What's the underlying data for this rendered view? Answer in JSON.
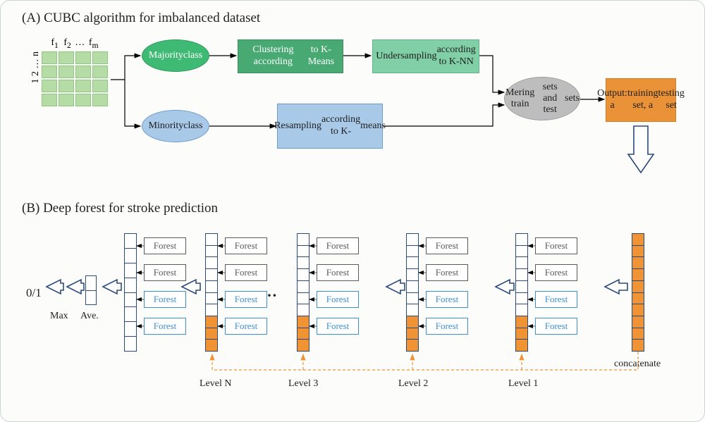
{
  "section_a_title": "(A) CUBC algorithm for imbalanced dataset",
  "section_b_title": "(B) Deep forest for stroke prediction",
  "grid": {
    "col_labels": [
      "f",
      "f",
      "…",
      "f"
    ],
    "col_subs": [
      "1",
      "2",
      "",
      "m"
    ],
    "row_labels_text": "1  2  …  n",
    "cell_fill": "#b5dca4",
    "cell_border": "#8ec97f",
    "cols": 4,
    "rows": 4
  },
  "nodes": {
    "majority": {
      "text": "Majority\nclass",
      "fill": "#3eba74",
      "stroke": "#2f9a5e",
      "color": "#ffffff"
    },
    "minority": {
      "text": "Minority\nclass",
      "fill": "#a8c9e8",
      "stroke": "#6f9bc9",
      "color": "#1e1e1e"
    },
    "clustering": {
      "text": "Clustering according\nto K-Means",
      "fill": "#48a973",
      "stroke": "#3a8f5f",
      "color": "#ffffff"
    },
    "undersampling": {
      "text": "Undersampling\naccording to K-NN",
      "fill": "#81cfa6",
      "stroke": "#5fb489",
      "color": "#1e1e1e"
    },
    "resampling": {
      "text": "Resampling\naccording to K-\nmeans",
      "fill": "#a8c9e8",
      "stroke": "#6f9bc9",
      "color": "#1e1e1e"
    },
    "merging": {
      "text": "Mering train\nsets and test\nsets",
      "fill": "#bdbdbd",
      "stroke": "#a0a0a0",
      "color": "#1e1e1e"
    },
    "output": {
      "text": "Output: a\ntraining set, a\ntesting set",
      "fill": "#ea9238",
      "stroke": "#d87c20",
      "color": "#1e1e1e"
    }
  },
  "part_b": {
    "forest_label": "Forest",
    "forest_gray_color": "#5a5a5a",
    "forest_blue_color": "#3b8fd0",
    "vec_border": "#2b4a7a",
    "vec_orange": "#ef9334",
    "level_labels": [
      "Level N",
      "Level 3",
      "Level 2",
      "Level 1"
    ],
    "output_label": "0/1",
    "max_label": "Max",
    "ave_label": "Ave.",
    "concat_label": "concatenate",
    "ellipsis": "…"
  },
  "colors": {
    "arrow": "#000000",
    "big_arrow_stroke": "#2b4a7a",
    "dashed_orange": "#ef9334"
  }
}
